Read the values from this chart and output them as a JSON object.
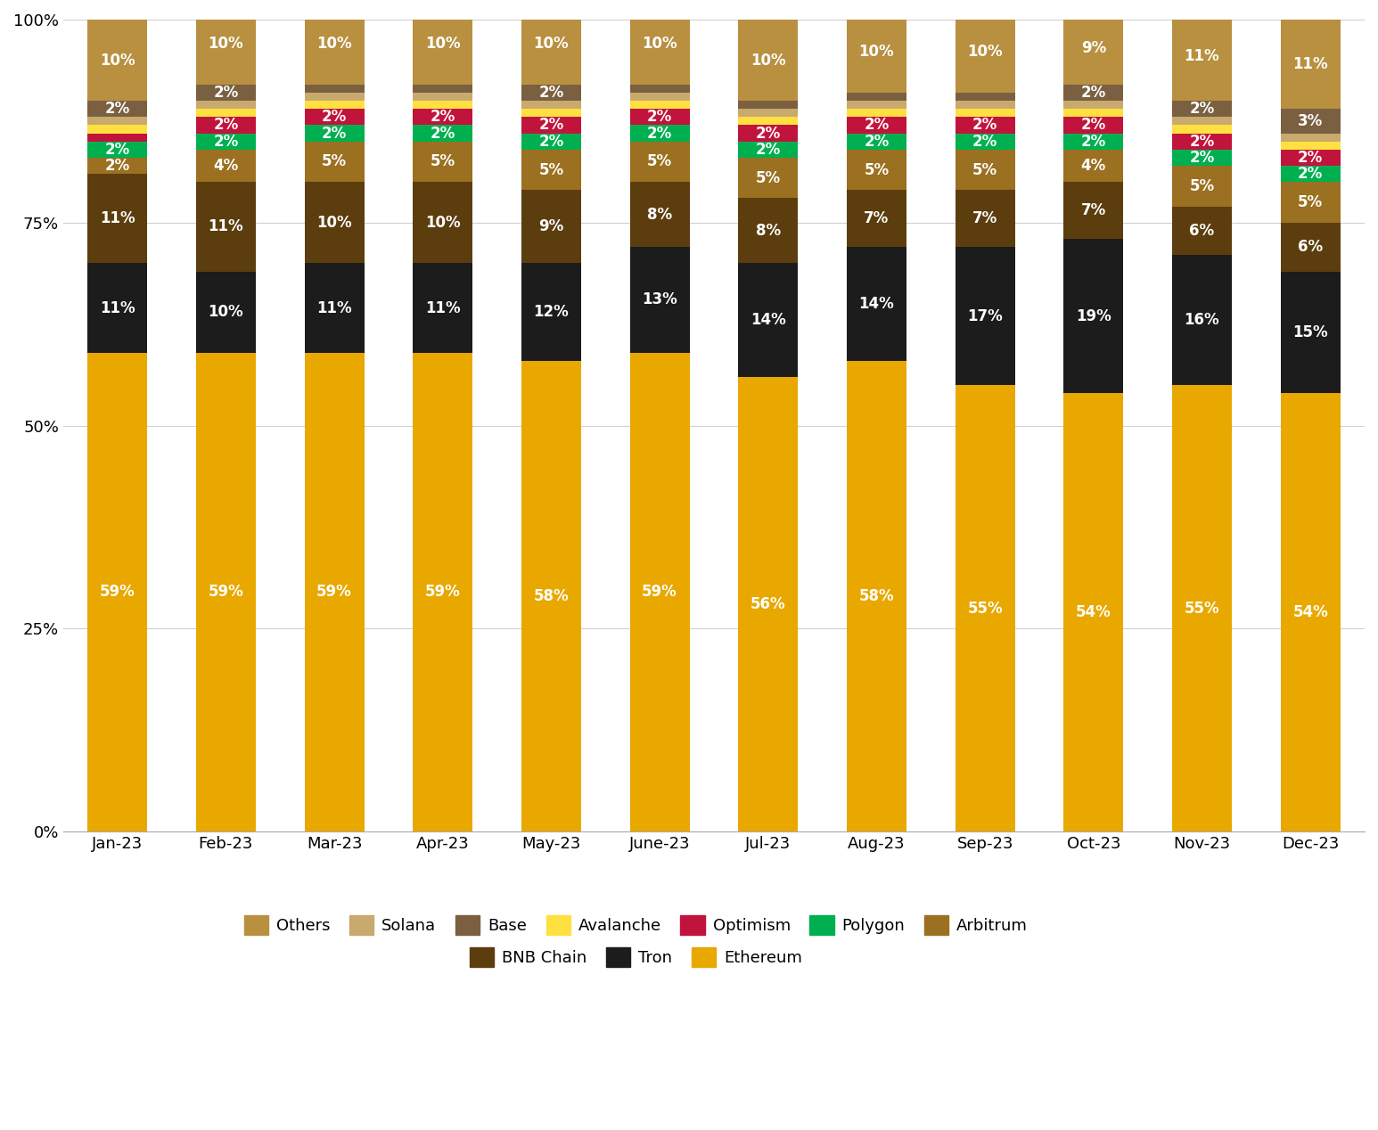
{
  "months": [
    "Jan-23",
    "Feb-23",
    "Mar-23",
    "Apr-23",
    "May-23",
    "June-23",
    "Jul-23",
    "Aug-23",
    "Sep-23",
    "Oct-23",
    "Nov-23",
    "Dec-23"
  ],
  "series": [
    {
      "name": "Ethereum",
      "color": "#E8A800",
      "values": [
        59,
        59,
        59,
        59,
        58,
        59,
        56,
        58,
        55,
        54,
        55,
        54
      ]
    },
    {
      "name": "Tron",
      "color": "#1C1C1C",
      "values": [
        11,
        10,
        11,
        11,
        12,
        13,
        14,
        14,
        17,
        19,
        16,
        15
      ]
    },
    {
      "name": "BNB Chain",
      "color": "#5C3D0E",
      "values": [
        11,
        11,
        10,
        10,
        9,
        8,
        8,
        7,
        7,
        7,
        6,
        6
      ]
    },
    {
      "name": "Arbitrum",
      "color": "#9B7020",
      "values": [
        2,
        4,
        5,
        5,
        5,
        5,
        5,
        5,
        5,
        4,
        5,
        5
      ]
    },
    {
      "name": "Polygon",
      "color": "#00B050",
      "values": [
        2,
        2,
        2,
        2,
        2,
        2,
        2,
        2,
        2,
        2,
        2,
        2
      ]
    },
    {
      "name": "Optimism",
      "color": "#C0143C",
      "values": [
        1,
        2,
        2,
        2,
        2,
        2,
        2,
        2,
        2,
        2,
        2,
        2
      ]
    },
    {
      "name": "Avalanche",
      "color": "#FFE040",
      "values": [
        1,
        1,
        1,
        1,
        1,
        1,
        1,
        1,
        1,
        1,
        1,
        1
      ]
    },
    {
      "name": "Solana",
      "color": "#C8A96E",
      "values": [
        1,
        1,
        1,
        1,
        1,
        1,
        1,
        1,
        1,
        1,
        1,
        1
      ]
    },
    {
      "name": "Base",
      "color": "#7A6040",
      "values": [
        2,
        2,
        1,
        1,
        2,
        1,
        1,
        1,
        1,
        2,
        2,
        3
      ]
    },
    {
      "name": "Others",
      "color": "#B89040",
      "values": [
        10,
        10,
        10,
        10,
        10,
        10,
        10,
        10,
        10,
        9,
        11,
        11
      ]
    }
  ],
  "draw_order": [
    "Ethereum",
    "Tron",
    "BNB Chain",
    "Arbitrum",
    "Polygon",
    "Optimism",
    "Avalanche",
    "Solana",
    "Base",
    "Others"
  ],
  "legend_order": [
    "Others",
    "Solana",
    "Base",
    "Avalanche",
    "Optimism",
    "Polygon",
    "Arbitrum",
    "BNB Chain",
    "Tron",
    "Ethereum"
  ],
  "legend_colors": {
    "Others": "#B89040",
    "Solana": "#C8A96E",
    "Base": "#7A6040",
    "Avalanche": "#FFE040",
    "Optimism": "#C0143C",
    "Polygon": "#00B050",
    "Arbitrum": "#9B7020",
    "BNB Chain": "#5C3D0E",
    "Tron": "#1C1C1C",
    "Ethereum": "#E8A800"
  },
  "yticks": [
    0,
    25,
    50,
    75,
    100
  ],
  "ytick_labels": [
    "0%",
    "25%",
    "50%",
    "75%",
    "100%"
  ],
  "background_color": "#ffffff",
  "bar_width": 0.55,
  "label_fontsize": 12,
  "legend_fontsize": 13,
  "tick_fontsize": 13
}
